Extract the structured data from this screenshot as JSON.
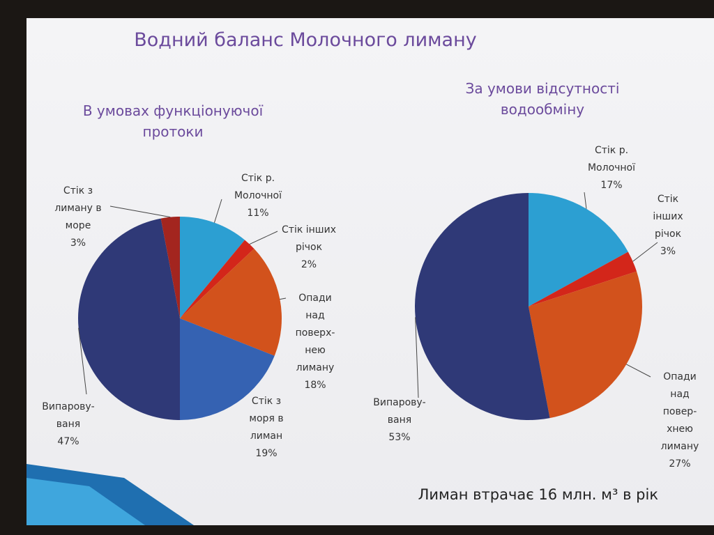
{
  "title": "Водний баланс Молочного лиману",
  "footer": "Лиман втрачає 16 млн. м³ в рік",
  "chart_data": [
    {
      "type": "pie",
      "title": "В умовах функціонуючої\nпротоки",
      "categories": [
        "Стік р.\nМолочної",
        "Стік інших\nрічок",
        "Опади\nнад\nповерх-\nнею\nлиману",
        "Стік з\nморя в\nлиман",
        "Випарову-\nваня",
        "Стік з\nлиману в\nморе"
      ],
      "values": [
        11,
        2,
        18,
        19,
        47,
        3
      ],
      "value_labels": [
        "11%",
        "2%",
        "18%",
        "19%",
        "47%",
        "3%"
      ],
      "colors": [
        "#2c9fd2",
        "#d3261a",
        "#d2521c",
        "#3562b2",
        "#2f3977",
        "#a3251f"
      ]
    },
    {
      "type": "pie",
      "title": "За умови відсутності\nводообміну",
      "categories": [
        "Стік р.\nМолочної",
        "Стік інших\nрічок",
        "Опади над\nповер-\nхнею\nлиману",
        "Випарову-\nваня"
      ],
      "values": [
        17,
        3,
        27,
        53
      ],
      "value_labels": [
        "17%",
        "3%",
        "27%",
        "53%"
      ],
      "colors": [
        "#2c9fd2",
        "#d3261a",
        "#d2521c",
        "#2f3977"
      ]
    }
  ]
}
